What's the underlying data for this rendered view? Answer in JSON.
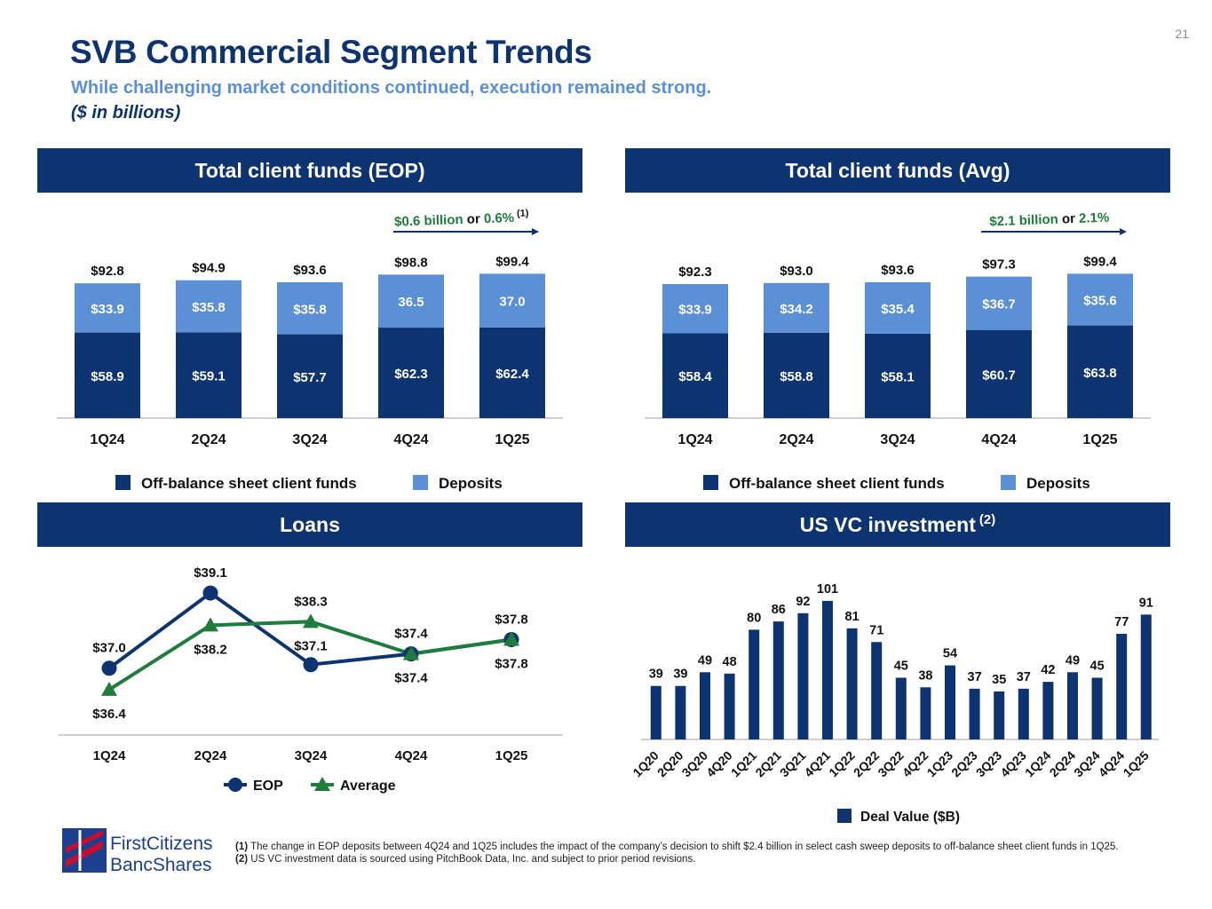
{
  "page_number": "21",
  "title": "SVB Commercial Segment Trends",
  "subtitle": "While challenging market conditions continued, execution remained strong.",
  "units_note": "($ in billions)",
  "panels": {
    "eop_header": "Total client funds (EOP)",
    "avg_header": "Total client funds (Avg)",
    "loans_header": "Loans",
    "vc_header": "US VC investment",
    "vc_header_sup": "(2)"
  },
  "colors": {
    "navy": "#0d3370",
    "light_blue": "#5b8fd6",
    "green": "#1e7d3c"
  },
  "logo": {
    "line1": "FirstCitizens",
    "line2": "BancShares"
  },
  "footnotes": [
    {
      "marker": "(1)",
      "text": "The change in EOP deposits between 4Q24 and 1Q25 includes the impact of the company’s decision to shift $2.4 billion in select cash sweep deposits to off-balance sheet client funds in 1Q25."
    },
    {
      "marker": "(2)",
      "text": "US VC investment data is sourced using PitchBook Data, Inc. and subject to prior period revisions."
    }
  ],
  "chart_data": [
    {
      "id": "eop",
      "type": "bar",
      "stacked": true,
      "categories": [
        "1Q24",
        "2Q24",
        "3Q24",
        "4Q24",
        "1Q25"
      ],
      "series": [
        {
          "name": "Off-balance sheet client funds",
          "values": [
            58.9,
            59.1,
            57.7,
            62.3,
            62.4
          ],
          "labels": [
            "$58.9",
            "$59.1",
            "$57.7",
            "$62.3",
            "$62.4"
          ],
          "color": "#0d3370"
        },
        {
          "name": "Deposits",
          "values": [
            33.9,
            35.8,
            35.8,
            36.5,
            37.0
          ],
          "labels": [
            "$33.9",
            "$35.8",
            "$35.8",
            "36.5",
            "37.0"
          ],
          "color": "#5b8fd6"
        }
      ],
      "totals": [
        "$92.8",
        "$94.9",
        "$93.6",
        "$98.8",
        "$99.4"
      ],
      "annotation": {
        "amount": "$0.6 billion",
        "connector": " or ",
        "percent": "0.6%",
        "footnote": "(1)"
      },
      "ylim": [
        0,
        110
      ]
    },
    {
      "id": "avg",
      "type": "bar",
      "stacked": true,
      "categories": [
        "1Q24",
        "2Q24",
        "3Q24",
        "4Q24",
        "1Q25"
      ],
      "series": [
        {
          "name": "Off-balance sheet client funds",
          "values": [
            58.4,
            58.8,
            58.1,
            60.7,
            63.8
          ],
          "labels": [
            "$58.4",
            "$58.8",
            "$58.1",
            "$60.7",
            "$63.8"
          ],
          "color": "#0d3370"
        },
        {
          "name": "Deposits",
          "values": [
            33.9,
            34.2,
            35.4,
            36.7,
            35.6
          ],
          "labels": [
            "$33.9",
            "$34.2",
            "$35.4",
            "$36.7",
            "$35.6"
          ],
          "color": "#5b8fd6"
        }
      ],
      "totals": [
        "$92.3",
        "$93.0",
        "$93.6",
        "$97.3",
        "$99.4"
      ],
      "annotation": {
        "amount": "$2.1 billion",
        "connector": " or ",
        "percent": "2.1%",
        "footnote": ""
      },
      "ylim": [
        0,
        110
      ]
    },
    {
      "id": "loans",
      "type": "line",
      "categories": [
        "1Q24",
        "2Q24",
        "3Q24",
        "4Q24",
        "1Q25"
      ],
      "series": [
        {
          "name": "EOP",
          "values": [
            37.0,
            39.1,
            37.1,
            37.4,
            37.8
          ],
          "labels": [
            "$37.0",
            "$39.1",
            "$37.1",
            "$37.4",
            "$37.8"
          ],
          "color": "#0d3370",
          "marker": "circle"
        },
        {
          "name": "Average",
          "values": [
            36.4,
            38.2,
            38.3,
            37.4,
            37.8
          ],
          "labels": [
            "$36.4",
            "$38.2",
            "$38.3",
            "$37.4",
            "$37.8"
          ],
          "color": "#1e7d3c",
          "marker": "triangle"
        }
      ]
    },
    {
      "id": "vc",
      "type": "bar",
      "categories": [
        "1Q20",
        "2Q20",
        "3Q20",
        "4Q20",
        "1Q21",
        "2Q21",
        "3Q21",
        "4Q21",
        "1Q22",
        "2Q22",
        "3Q22",
        "4Q22",
        "1Q23",
        "2Q23",
        "3Q23",
        "4Q23",
        "1Q24",
        "2Q24",
        "3Q24",
        "4Q24",
        "1Q25"
      ],
      "series": [
        {
          "name": "Deal Value ($B)",
          "values": [
            39,
            39,
            49,
            48,
            80,
            86,
            92,
            101,
            81,
            71,
            45,
            38,
            54,
            37,
            35,
            37,
            42,
            49,
            45,
            77,
            91
          ],
          "color": "#0d3370"
        }
      ],
      "ylim": [
        0,
        110
      ]
    }
  ]
}
